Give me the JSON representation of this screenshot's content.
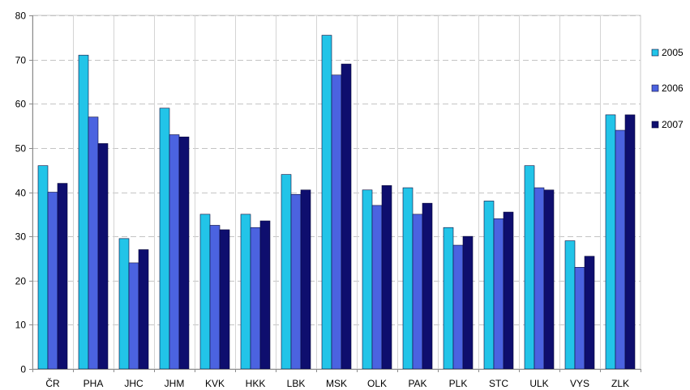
{
  "chart_data": {
    "type": "bar",
    "title": "",
    "xlabel": "",
    "ylabel": "",
    "categories": [
      "ČR",
      "PHA",
      "JHC",
      "JHM",
      "KVK",
      "HKK",
      "LBK",
      "MSK",
      "OLK",
      "PAK",
      "PLK",
      "STC",
      "ULK",
      "VYS",
      "ZLK"
    ],
    "series": [
      {
        "name": "2005",
        "color": "#22c4e8",
        "values": [
          46,
          71,
          29.5,
          59,
          35,
          35,
          44,
          75.5,
          40.5,
          41,
          32,
          38,
          46,
          29,
          57.5
        ]
      },
      {
        "name": "2006",
        "color": "#4b63e0",
        "values": [
          40,
          57,
          24,
          53,
          32.5,
          32,
          39.5,
          66.5,
          37,
          35,
          28,
          34,
          41,
          23,
          54
        ]
      },
      {
        "name": "2007",
        "color": "#0e0e6e",
        "values": [
          42,
          51,
          27,
          52.5,
          31.5,
          33.5,
          40.5,
          69,
          41.5,
          37.5,
          30,
          35.5,
          40.5,
          25.5,
          57.5
        ]
      }
    ],
    "ylim": [
      0,
      80
    ],
    "yticks": [
      "0",
      "10",
      "20",
      "30",
      "40",
      "50",
      "60",
      "70",
      "80"
    ],
    "grid": true,
    "legend": "right"
  }
}
